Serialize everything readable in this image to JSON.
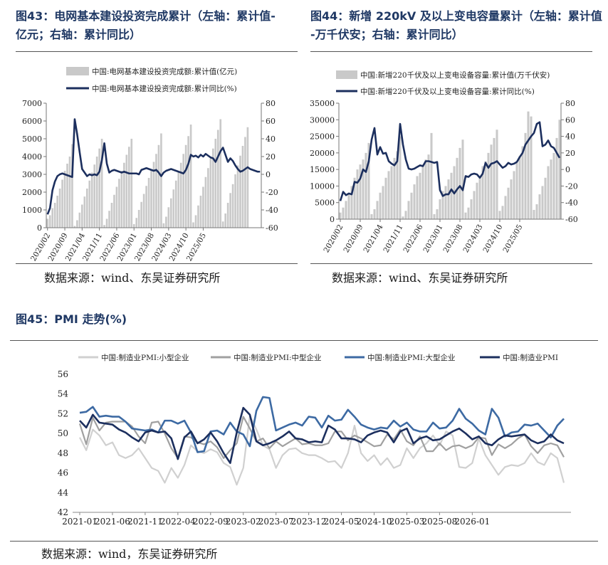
{
  "figures": {
    "fig43": {
      "title_line1": "图43：电网基本建设投资完成累计（左轴：累计值-",
      "title_line2": "亿元；右轴：累计同比）",
      "source": "数据来源：wind、东吴证券研究所"
    },
    "fig44": {
      "title_line1": "图44：新增 220kV 及以上变电容量累计（左轴：累计值",
      "title_line2": "-万千伏安；右轴：累计同比）",
      "source": "数据来源：wind、东吴证券研究所"
    },
    "fig45": {
      "title": "图45：PMI 走势(%)",
      "source": "数据来源：wind，东吴证券研究所"
    }
  },
  "colors": {
    "bar": "#c9c9c9",
    "line_navy": "#1c2f5e",
    "pmi_small": "#d0d0d0",
    "pmi_mid": "#a0a0a0",
    "pmi_large": "#3d6aa3",
    "pmi_all": "#1c2f5e",
    "title": "#1f3864"
  },
  "chart_data": [
    {
      "id": "fig43",
      "type": "bar+line",
      "series": [
        {
          "name": "中国:电网基本建设投资完成额:累计值(亿元)",
          "kind": "bar",
          "axis": "left",
          "values": [
            500,
            700,
            1100,
            1400,
            1800,
            2200,
            2700,
            3200,
            3600,
            4000,
            4700,
            100,
            420,
            850,
            1300,
            1750,
            2200,
            2650,
            3100,
            3550,
            4000,
            4450,
            5000,
            150,
            500,
            950,
            1400,
            1850,
            2300,
            2750,
            3200,
            3650,
            4100,
            4550,
            5000,
            200,
            550,
            1000,
            1450,
            1900,
            2350,
            2800,
            3250,
            3700,
            4150,
            4650,
            5300,
            250,
            620,
            1150,
            1650,
            2150,
            2650,
            3150,
            3650,
            4150,
            4650,
            5150,
            5800,
            300,
            700,
            1250,
            1800,
            2300,
            2850,
            3350,
            3900,
            4450,
            5000,
            5500,
            6100,
            350,
            800,
            1400,
            1950,
            2450,
            3000,
            3500,
            4050,
            4600,
            5100,
            5650
          ]
        },
        {
          "name": "中国:电网基本建设投资完成额:累计同比(%)",
          "kind": "line",
          "axis": "right",
          "values": [
            -45,
            -38,
            -18,
            -8,
            -2,
            0,
            1,
            0,
            -1,
            -2,
            -3,
            62,
            45,
            25,
            6,
            2,
            -2,
            0,
            -1,
            0,
            -1,
            3,
            16,
            35,
            12,
            2,
            4,
            5,
            4,
            3,
            2,
            3,
            2,
            1,
            1,
            1,
            1,
            0,
            5,
            6,
            7,
            6,
            5,
            4,
            5,
            2,
            -2,
            2,
            4,
            5,
            6,
            5,
            4,
            3,
            2,
            1,
            5,
            12,
            22,
            20,
            21,
            19,
            22,
            20,
            23,
            21,
            19,
            18,
            14,
            20,
            26,
            30,
            22,
            14,
            18,
            15,
            10,
            6,
            3,
            4,
            6,
            8,
            6,
            5,
            4,
            3,
            3
          ]
        }
      ],
      "x_tick_labels": [
        "2020/02",
        "2020/09",
        "2021/04",
        "2021/11",
        "2022/06",
        "2023/01",
        "2023/08",
        "2024/03",
        "2024/10",
        "2025/05"
      ],
      "y_left_ticks": [
        "0",
        "1000",
        "2000",
        "3000",
        "4000",
        "5000",
        "6000",
        "7000"
      ],
      "y_right_ticks": [
        "-60",
        "-40",
        "-20",
        "0",
        "20",
        "40",
        "60",
        "80"
      ],
      "ylim_left": [
        0,
        7000
      ],
      "ylim_right": [
        -60,
        80
      ]
    },
    {
      "id": "fig44",
      "type": "bar+line",
      "series": [
        {
          "name": "中国:新增220千伏及以上变电设备容量:累计值(万千伏安)",
          "kind": "bar",
          "axis": "left",
          "values": [
            2000,
            3500,
            5500,
            7500,
            10000,
            12500,
            15000,
            16500,
            18000,
            20000,
            23000,
            1500,
            3000,
            5500,
            8000,
            10000,
            12500,
            14500,
            16000,
            18500,
            20500,
            25000,
            800,
            2500,
            5500,
            8000,
            10500,
            13000,
            14000,
            16500,
            18000,
            19500,
            26000,
            1500,
            3000,
            6000,
            8500,
            10000,
            12000,
            14000,
            16000,
            18500,
            21500,
            24000,
            2000,
            3500,
            6000,
            8500,
            11000,
            13000,
            16000,
            17500,
            20000,
            22500,
            24500,
            27000,
            2500,
            4000,
            7000,
            9500,
            12000,
            14500,
            17000,
            19000,
            22000,
            26000,
            32500,
            31000,
            2800,
            4500,
            7500,
            10000,
            12500,
            16000,
            18000,
            20000,
            24500,
            30000
          ]
        },
        {
          "name": "中国:新增220千伏及以上变电设备容量:累计同比(%)",
          "kind": "line",
          "axis": "right",
          "values": [
            -38,
            -27,
            -31,
            -29,
            -30,
            -15,
            -16,
            -11,
            0,
            -3,
            10,
            36,
            50,
            18,
            27,
            19,
            20,
            10,
            7,
            5,
            10,
            55,
            30,
            12,
            1,
            0,
            1,
            3,
            5,
            4,
            10,
            10,
            9,
            8,
            9,
            -25,
            -32,
            -30,
            -30,
            -24,
            -29,
            -24,
            -20,
            -25,
            -8,
            -9,
            -6,
            -5,
            -6,
            -10,
            -5,
            8,
            2,
            7,
            8,
            10,
            6,
            2,
            4,
            8,
            6,
            7,
            9,
            15,
            20,
            30,
            35,
            40,
            44,
            55,
            57,
            28,
            30,
            35,
            28,
            26,
            20,
            14
          ]
        }
      ],
      "x_tick_labels": [
        "2020/02",
        "2020/09",
        "2021/04",
        "2021/11",
        "2022/06",
        "2023/01",
        "2023/08",
        "2024/03",
        "2024/10",
        "2025/05"
      ],
      "y_left_ticks": [
        "0",
        "5000",
        "10000",
        "15000",
        "20000",
        "25000",
        "30000",
        "35000"
      ],
      "y_right_ticks": [
        "-60",
        "-40",
        "-20",
        "0",
        "20",
        "40",
        "60",
        "80"
      ],
      "ylim_left": [
        0,
        35000
      ],
      "ylim_right": [
        -60,
        80
      ]
    },
    {
      "id": "fig45",
      "type": "line",
      "series": [
        {
          "name": "中国:制造业PMI:小型企业",
          "values": [
            49.6,
            48.3,
            50.4,
            49.8,
            48.8,
            49.1,
            47.8,
            47.5,
            47.8,
            48.5,
            47.5,
            46.5,
            46.2,
            45.0,
            46.5,
            45.5,
            46.8,
            48.8,
            48.2,
            48.0,
            48.4,
            48.1,
            47.0,
            46.6,
            44.8,
            46.5,
            51.8,
            50.4,
            48.8,
            48.4,
            46.5,
            47.8,
            48.4,
            48.5,
            48.0,
            47.8,
            47.8,
            47.5,
            47.1,
            47.2,
            46.5,
            48.0,
            50.8,
            48.0,
            47.2,
            47.8,
            46.8,
            47.5,
            46.5,
            46.8,
            48.5,
            47.5,
            48.5,
            49.0,
            49.8,
            48.8,
            50.2,
            49.8,
            46.6,
            46.5,
            47.0,
            49.5,
            47.8,
            46.8,
            45.8,
            46.6,
            46.8,
            46.7,
            47.0,
            48.0,
            47.1,
            46.8,
            48.0,
            47.5,
            45.0
          ]
        },
        {
          "name": "中国:制造业PMI:中型企业",
          "values": [
            51.0,
            48.9,
            51.6,
            50.3,
            51.1,
            51.2,
            51.2,
            51.2,
            50.7,
            49.7,
            49.0,
            51.1,
            51.2,
            50.0,
            48.5,
            47.5,
            49.7,
            49.6,
            49.1,
            48.9,
            49.2,
            48.6,
            47.5,
            48.3,
            49.0,
            51.7,
            50.5,
            49.2,
            49.5,
            48.5,
            49.2,
            48.7,
            49.1,
            49.5,
            48.9,
            49.0,
            48.8,
            48.8,
            49.0,
            50.2,
            50.2,
            49.3,
            49.8,
            49.5,
            49.1,
            48.7,
            48.8,
            49.9,
            49.4,
            50.4,
            49.2,
            48.8,
            49.7,
            48.2,
            48.2,
            49.0,
            48.3,
            48.7,
            48.8,
            48.5,
            48.8,
            49.6,
            49.5,
            47.8,
            48.9,
            48.5,
            48.9,
            49.5,
            49.9,
            48.7,
            48.0,
            48.8,
            49.0,
            48.8,
            47.6
          ]
        },
        {
          "name": "中国:制造业PMI:大型企业",
          "values": [
            52.1,
            52.2,
            52.7,
            51.7,
            51.8,
            51.7,
            51.7,
            51.2,
            50.5,
            50.4,
            50.3,
            50.4,
            50.1,
            51.3,
            51.3,
            51.0,
            51.3,
            50.1,
            48.1,
            48.2,
            50.2,
            50.3,
            49.9,
            51.1,
            50.2,
            49.9,
            48.7,
            52.3,
            53.7,
            53.6,
            50.3,
            50.6,
            50.9,
            51.1,
            50.8,
            51.7,
            51.6,
            50.6,
            51.8,
            51.3,
            51.4,
            52.4,
            51.7,
            50.9,
            50.6,
            50.4,
            50.6,
            50.5,
            51.3,
            50.7,
            51.1,
            50.4,
            50.2,
            50.2,
            51.1,
            50.5,
            50.6,
            51.3,
            52.5,
            51.5,
            51.0,
            50.3,
            49.9,
            52.5,
            51.6,
            49.7,
            50.1,
            50.2,
            50.9,
            50.8,
            51.0,
            50.3,
            49.6,
            50.8,
            51.5
          ]
        },
        {
          "name": "中国:制造业PMI",
          "values": [
            51.3,
            50.6,
            51.9,
            51.1,
            51.0,
            50.9,
            50.4,
            50.1,
            49.6,
            49.2,
            50.1,
            50.3,
            50.1,
            50.2,
            49.5,
            47.4,
            49.6,
            50.2,
            49.0,
            49.4,
            50.1,
            49.2,
            48.0,
            47.0,
            50.1,
            52.6,
            51.9,
            49.2,
            48.8,
            49.0,
            49.3,
            49.7,
            50.2,
            49.5,
            49.4,
            49.1,
            49.2,
            49.1,
            50.8,
            50.4,
            49.5,
            49.5,
            49.4,
            49.1,
            49.8,
            50.1,
            50.3,
            50.1,
            49.1,
            50.2,
            50.5,
            49.0,
            49.5,
            49.7,
            49.3,
            49.4,
            49.8,
            50.2,
            50.5,
            50.0,
            49.4,
            49.7,
            49.0,
            48.8,
            49.4,
            49.8,
            49.7,
            49.8,
            49.9,
            49.3,
            49.0,
            49.2,
            49.9,
            49.3,
            49.0
          ]
        }
      ],
      "x_tick_labels": [
        "2021-01",
        "2021-06",
        "2021-11",
        "2022-04",
        "2022-09",
        "2023-02",
        "2023-07",
        "2023-12",
        "2024-05",
        "2024-10",
        "2025-03",
        "2025-08",
        "2026-01"
      ],
      "y_ticks": [
        "42",
        "44",
        "46",
        "48",
        "50",
        "52",
        "54",
        "56"
      ],
      "ylim": [
        42,
        56
      ]
    }
  ]
}
